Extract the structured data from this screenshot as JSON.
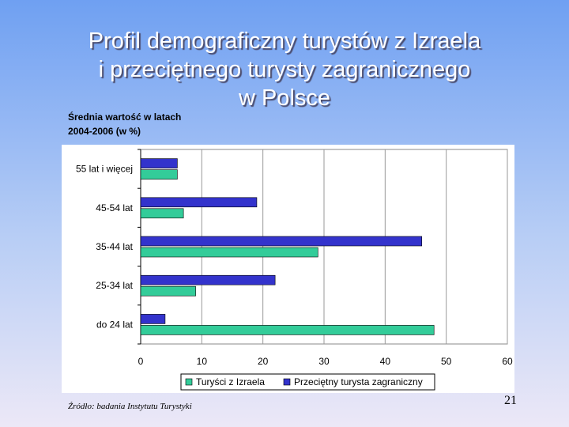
{
  "slide": {
    "title_line1": "Profil demograficzny turystów z Izraela",
    "title_line2": "i przeciętnego turysty zagranicznego",
    "title_line3": "w Polsce",
    "subtitle_line1": "Średnia wartość w latach",
    "subtitle_line2": "2004-2006 (w %)",
    "source": "Źródło: badania Instytutu Turystyki",
    "page_number": "21"
  },
  "chart_data": {
    "type": "bar",
    "orientation": "horizontal",
    "categories": [
      "55 lat i więcej",
      "45-54 lat",
      "35-44 lat",
      "25-34 lat",
      "do 24 lat"
    ],
    "series": [
      {
        "name": "Turyści z Izraela",
        "color": "#33cc99",
        "values": [
          6,
          7,
          29,
          9,
          48
        ]
      },
      {
        "name": "Przeciętny turysta zagraniczny",
        "color": "#3333cc",
        "values": [
          6,
          19,
          46,
          22,
          4
        ]
      }
    ],
    "xlim": [
      0,
      60
    ],
    "xticks": [
      0,
      10,
      20,
      30,
      40,
      50,
      60
    ],
    "grid": true,
    "legend_position": "bottom"
  }
}
